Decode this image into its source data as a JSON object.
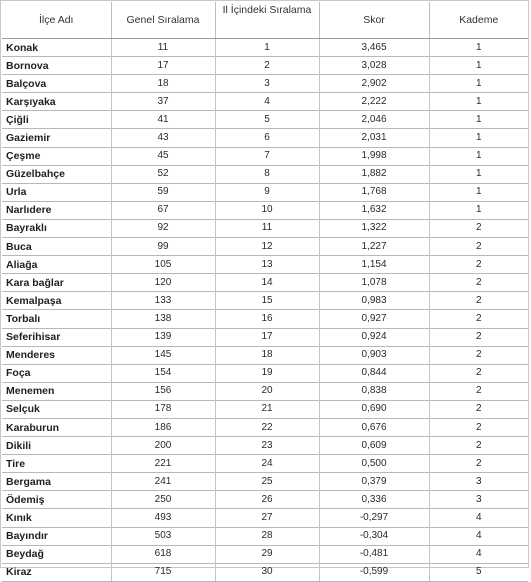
{
  "headers": {
    "ilce": "İlçe Adı",
    "genel": "Genel Sıralama",
    "il": "Il İçindeki Sıralama",
    "skor": "Skor",
    "kademe": "Kademe"
  },
  "rows": [
    {
      "ilce": "Konak",
      "genel": "11",
      "il": "1",
      "skor": "3,465",
      "kademe": "1"
    },
    {
      "ilce": "Bornova",
      "genel": "17",
      "il": "2",
      "skor": "3,028",
      "kademe": "1"
    },
    {
      "ilce": "Balçova",
      "genel": "18",
      "il": "3",
      "skor": "2,902",
      "kademe": "1"
    },
    {
      "ilce": "Karşıyaka",
      "genel": "37",
      "il": "4",
      "skor": "2,222",
      "kademe": "1"
    },
    {
      "ilce": "Çiğli",
      "genel": "41",
      "il": "5",
      "skor": "2,046",
      "kademe": "1"
    },
    {
      "ilce": "Gaziemir",
      "genel": "43",
      "il": "6",
      "skor": "2,031",
      "kademe": "1"
    },
    {
      "ilce": "Çeşme",
      "genel": "45",
      "il": "7",
      "skor": "1,998",
      "kademe": "1"
    },
    {
      "ilce": "Güzelbahçe",
      "genel": "52",
      "il": "8",
      "skor": "1,882",
      "kademe": "1"
    },
    {
      "ilce": "Urla",
      "genel": "59",
      "il": "9",
      "skor": "1,768",
      "kademe": "1"
    },
    {
      "ilce": "Narlıdere",
      "genel": "67",
      "il": "10",
      "skor": "1,632",
      "kademe": "1"
    },
    {
      "ilce": "Bayraklı",
      "genel": "92",
      "il": "11",
      "skor": "1,322",
      "kademe": "2"
    },
    {
      "ilce": "Buca",
      "genel": "99",
      "il": "12",
      "skor": "1,227",
      "kademe": "2"
    },
    {
      "ilce": "Aliağa",
      "genel": "105",
      "il": "13",
      "skor": "1,154",
      "kademe": "2"
    },
    {
      "ilce": "Kara bağlar",
      "genel": "120",
      "il": "14",
      "skor": "1,078",
      "kademe": "2"
    },
    {
      "ilce": "Kemalpaşa",
      "genel": "133",
      "il": "15",
      "skor": "0,983",
      "kademe": "2"
    },
    {
      "ilce": "Torbalı",
      "genel": "138",
      "il": "16",
      "skor": "0,927",
      "kademe": "2"
    },
    {
      "ilce": "Seferihisar",
      "genel": "139",
      "il": "17",
      "skor": "0,924",
      "kademe": "2"
    },
    {
      "ilce": "Menderes",
      "genel": "145",
      "il": "18",
      "skor": "0,903",
      "kademe": "2"
    },
    {
      "ilce": "Foça",
      "genel": "154",
      "il": "19",
      "skor": "0,844",
      "kademe": "2"
    },
    {
      "ilce": "Menemen",
      "genel": "156",
      "il": "20",
      "skor": "0,838",
      "kademe": "2"
    },
    {
      "ilce": "Selçuk",
      "genel": "178",
      "il": "21",
      "skor": "0,690",
      "kademe": "2"
    },
    {
      "ilce": "Karaburun",
      "genel": "186",
      "il": "22",
      "skor": "0,676",
      "kademe": "2"
    },
    {
      "ilce": "Dikili",
      "genel": "200",
      "il": "23",
      "skor": "0,609",
      "kademe": "2"
    },
    {
      "ilce": "Tire",
      "genel": "221",
      "il": "24",
      "skor": "0,500",
      "kademe": "2"
    },
    {
      "ilce": "Bergama",
      "genel": "241",
      "il": "25",
      "skor": "0,379",
      "kademe": "3"
    },
    {
      "ilce": "Ödemiş",
      "genel": "250",
      "il": "26",
      "skor": "0,336",
      "kademe": "3"
    },
    {
      "ilce": "Kınık",
      "genel": "493",
      "il": "27",
      "skor": "-0,297",
      "kademe": "4"
    },
    {
      "ilce": "Bayındır",
      "genel": "503",
      "il": "28",
      "skor": "-0,304",
      "kademe": "4"
    },
    {
      "ilce": "Beydağ",
      "genel": "618",
      "il": "29",
      "skor": "-0,481",
      "kademe": "4"
    },
    {
      "ilce": "Kiraz",
      "genel": "715",
      "il": "30",
      "skor": "-0,599",
      "kademe": "5"
    }
  ]
}
